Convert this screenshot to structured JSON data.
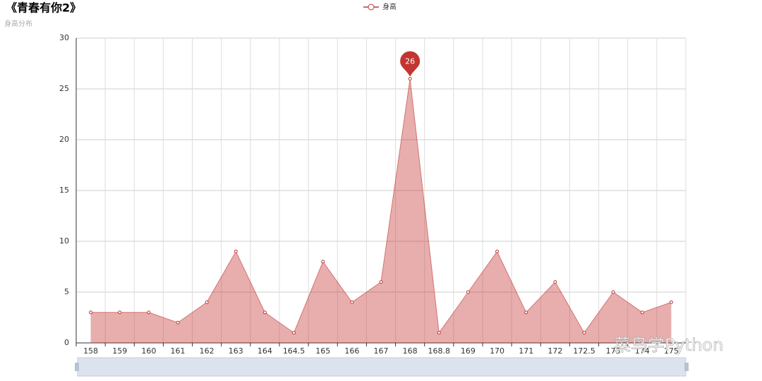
{
  "chart_data": {
    "type": "line",
    "title": "《青春有你2》",
    "subtitle": "身高分布",
    "categories": [
      "158",
      "159",
      "160",
      "161",
      "162",
      "163",
      "164",
      "164.5",
      "165",
      "166",
      "167",
      "168",
      "168.8",
      "169",
      "170",
      "171",
      "172",
      "172.5",
      "173",
      "174",
      "175"
    ],
    "series": [
      {
        "name": "身高",
        "color": "#c23531",
        "values": [
          3,
          3,
          3,
          2,
          4,
          9,
          3,
          1,
          8,
          4,
          6,
          26,
          1,
          5,
          9,
          3,
          6,
          1,
          5,
          3,
          4
        ]
      }
    ],
    "ylim": [
      0,
      30
    ],
    "yticks": [
      0,
      5,
      10,
      15,
      20,
      25,
      30
    ],
    "grid": true,
    "area": true,
    "mark_max_index": 11,
    "watermark": "菜鸟学Python"
  }
}
